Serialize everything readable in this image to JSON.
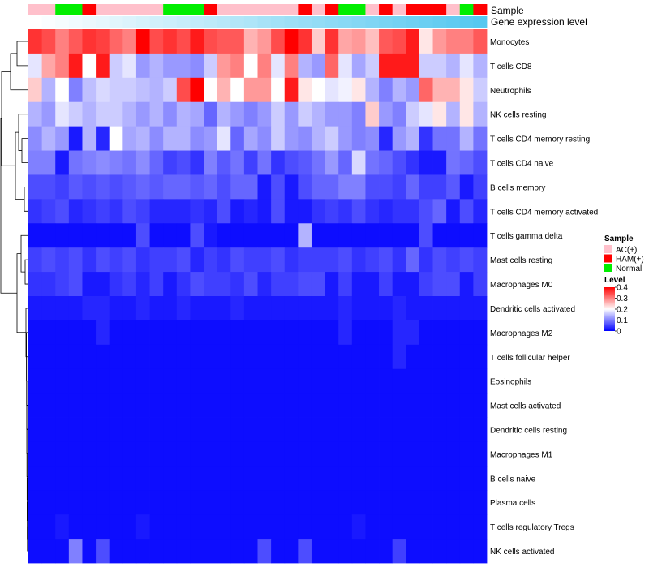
{
  "chart_data": {
    "type": "heatmap",
    "title": "",
    "annotation_tracks": [
      {
        "name": "Sample",
        "values": [
          "AC(+)",
          "AC(+)",
          "Normal",
          "Normal",
          "HAM(+)",
          "AC(+)",
          "AC(+)",
          "AC(+)",
          "AC(+)",
          "AC(+)",
          "Normal",
          "Normal",
          "Normal",
          "HAM(+)",
          "AC(+)",
          "AC(+)",
          "AC(+)",
          "AC(+)",
          "AC(+)",
          "AC(+)",
          "HAM(+)",
          "AC(+)",
          "HAM(+)",
          "Normal",
          "Normal",
          "AC(+)",
          "HAM(+)",
          "AC(+)",
          "HAM(+)",
          "HAM(+)",
          "HAM(+)",
          "AC(+)",
          "Normal",
          "HAM(+)"
        ]
      },
      {
        "name": "Gene expression level",
        "values": [
          0.0,
          0.03,
          0.06,
          0.09,
          0.12,
          0.15,
          0.18,
          0.21,
          0.24,
          0.27,
          0.3,
          0.33,
          0.36,
          0.39,
          0.42,
          0.45,
          0.48,
          0.52,
          0.55,
          0.58,
          0.61,
          0.64,
          0.67,
          0.7,
          0.73,
          0.76,
          0.79,
          0.82,
          0.85,
          0.88,
          0.91,
          0.94,
          0.97,
          1.0
        ]
      }
    ],
    "rows": [
      "Monocytes",
      "T cells CD8",
      "Neutrophils",
      "NK cells resting",
      "T cells CD4 memory resting",
      "T cells CD4 naive",
      "B cells memory",
      "T cells CD4 memory activated",
      "T cells gamma delta",
      "Mast cells resting",
      "Macrophages M0",
      "Dendritic cells activated",
      "Macrophages M2",
      "T cells follicular helper",
      "Eosinophils",
      "Mast cells activated",
      "Dendritic cells resting",
      "Macrophages M1",
      "B cells naive",
      "Plasma cells",
      "T cells regulatory  Tregs",
      "NK cells activated"
    ],
    "n_columns": 34,
    "values": [
      [
        0.36,
        0.34,
        0.3,
        0.33,
        0.36,
        0.35,
        0.32,
        0.3,
        0.4,
        0.34,
        0.36,
        0.34,
        0.38,
        0.34,
        0.33,
        0.33,
        0.26,
        0.28,
        0.34,
        0.4,
        0.36,
        0.24,
        0.36,
        0.27,
        0.28,
        0.25,
        0.33,
        0.34,
        0.38,
        0.22,
        0.28,
        0.3,
        0.3,
        0.33
      ],
      [
        0.18,
        0.27,
        0.3,
        0.38,
        0.2,
        0.38,
        0.16,
        0.18,
        0.12,
        0.14,
        0.12,
        0.12,
        0.11,
        0.16,
        0.28,
        0.3,
        0.2,
        0.3,
        0.18,
        0.3,
        0.14,
        0.12,
        0.32,
        0.18,
        0.13,
        0.16,
        0.38,
        0.38,
        0.38,
        0.16,
        0.16,
        0.14,
        0.18,
        0.14
      ],
      [
        0.24,
        0.14,
        0.2,
        0.1,
        0.15,
        0.17,
        0.16,
        0.16,
        0.15,
        0.14,
        0.16,
        0.34,
        0.4,
        0.2,
        0.26,
        0.2,
        0.28,
        0.28,
        0.2,
        0.38,
        0.22,
        0.2,
        0.18,
        0.19,
        0.22,
        0.14,
        0.1,
        0.14,
        0.12,
        0.32,
        0.26,
        0.26,
        0.22,
        0.16
      ],
      [
        0.14,
        0.12,
        0.18,
        0.16,
        0.14,
        0.16,
        0.16,
        0.14,
        0.12,
        0.14,
        0.11,
        0.14,
        0.13,
        0.08,
        0.14,
        0.12,
        0.1,
        0.12,
        0.16,
        0.12,
        0.16,
        0.14,
        0.12,
        0.12,
        0.1,
        0.24,
        0.12,
        0.1,
        0.16,
        0.18,
        0.22,
        0.14,
        0.22,
        0.14
      ],
      [
        0.11,
        0.14,
        0.12,
        0.02,
        0.14,
        0.03,
        0.2,
        0.13,
        0.14,
        0.11,
        0.14,
        0.14,
        0.11,
        0.12,
        0.18,
        0.08,
        0.13,
        0.11,
        0.16,
        0.12,
        0.11,
        0.14,
        0.16,
        0.12,
        0.1,
        0.11,
        0.03,
        0.12,
        0.14,
        0.04,
        0.09,
        0.09,
        0.14,
        0.09
      ],
      [
        0.1,
        0.1,
        0.02,
        0.09,
        0.1,
        0.11,
        0.1,
        0.09,
        0.11,
        0.08,
        0.05,
        0.06,
        0.04,
        0.1,
        0.07,
        0.09,
        0.05,
        0.09,
        0.04,
        0.06,
        0.07,
        0.09,
        0.12,
        0.08,
        0.17,
        0.09,
        0.08,
        0.06,
        0.04,
        0.02,
        0.02,
        0.09,
        0.08,
        0.06
      ],
      [
        0.06,
        0.06,
        0.05,
        0.07,
        0.06,
        0.07,
        0.06,
        0.07,
        0.08,
        0.07,
        0.08,
        0.08,
        0.07,
        0.08,
        0.06,
        0.08,
        0.08,
        0.02,
        0.06,
        0.02,
        0.06,
        0.08,
        0.08,
        0.1,
        0.1,
        0.06,
        0.06,
        0.05,
        0.08,
        0.05,
        0.05,
        0.07,
        0.02,
        0.05
      ],
      [
        0.04,
        0.05,
        0.06,
        0.03,
        0.04,
        0.05,
        0.04,
        0.06,
        0.05,
        0.03,
        0.03,
        0.03,
        0.04,
        0.03,
        0.06,
        0.02,
        0.03,
        0.02,
        0.06,
        0.02,
        0.02,
        0.04,
        0.05,
        0.04,
        0.06,
        0.04,
        0.03,
        0.04,
        0.04,
        0.06,
        0.08,
        0.02,
        0.06,
        0.03
      ],
      [
        0.01,
        0.01,
        0.01,
        0.01,
        0.01,
        0.01,
        0.01,
        0.01,
        0.06,
        0.01,
        0.01,
        0.01,
        0.06,
        0.02,
        0.01,
        0.01,
        0.01,
        0.01,
        0.01,
        0.01,
        0.14,
        0.01,
        0.01,
        0.01,
        0.01,
        0.01,
        0.01,
        0.01,
        0.01,
        0.06,
        0.01,
        0.01,
        0.01,
        0.01
      ],
      [
        0.05,
        0.06,
        0.05,
        0.06,
        0.04,
        0.06,
        0.05,
        0.06,
        0.04,
        0.05,
        0.05,
        0.06,
        0.03,
        0.05,
        0.04,
        0.06,
        0.05,
        0.05,
        0.06,
        0.04,
        0.05,
        0.05,
        0.05,
        0.06,
        0.04,
        0.05,
        0.06,
        0.04,
        0.08,
        0.04,
        0.06,
        0.05,
        0.06,
        0.05
      ],
      [
        0.04,
        0.04,
        0.05,
        0.06,
        0.02,
        0.02,
        0.04,
        0.05,
        0.03,
        0.05,
        0.02,
        0.04,
        0.06,
        0.05,
        0.05,
        0.04,
        0.06,
        0.03,
        0.05,
        0.05,
        0.06,
        0.06,
        0.02,
        0.05,
        0.02,
        0.02,
        0.05,
        0.02,
        0.02,
        0.05,
        0.06,
        0.06,
        0.02,
        0.05
      ],
      [
        0.02,
        0.02,
        0.02,
        0.02,
        0.03,
        0.03,
        0.02,
        0.02,
        0.03,
        0.02,
        0.02,
        0.03,
        0.02,
        0.02,
        0.02,
        0.03,
        0.02,
        0.02,
        0.02,
        0.02,
        0.02,
        0.02,
        0.02,
        0.03,
        0.02,
        0.02,
        0.02,
        0.03,
        0.02,
        0.02,
        0.02,
        0.02,
        0.02,
        0.02
      ],
      [
        0.01,
        0.01,
        0.01,
        0.01,
        0.01,
        0.03,
        0.01,
        0.01,
        0.01,
        0.01,
        0.01,
        0.01,
        0.01,
        0.01,
        0.01,
        0.01,
        0.01,
        0.01,
        0.01,
        0.01,
        0.01,
        0.01,
        0.01,
        0.03,
        0.01,
        0.01,
        0.01,
        0.03,
        0.03,
        0.01,
        0.01,
        0.01,
        0.01,
        0.01
      ],
      [
        0.01,
        0.01,
        0.01,
        0.01,
        0.01,
        0.01,
        0.01,
        0.01,
        0.01,
        0.01,
        0.01,
        0.01,
        0.01,
        0.01,
        0.01,
        0.01,
        0.01,
        0.01,
        0.01,
        0.01,
        0.01,
        0.01,
        0.01,
        0.01,
        0.01,
        0.01,
        0.01,
        0.03,
        0.01,
        0.01,
        0.01,
        0.01,
        0.01,
        0.01
      ],
      [
        0.01,
        0.01,
        0.01,
        0.01,
        0.01,
        0.01,
        0.01,
        0.01,
        0.01,
        0.01,
        0.01,
        0.01,
        0.01,
        0.01,
        0.01,
        0.01,
        0.01,
        0.01,
        0.01,
        0.01,
        0.01,
        0.01,
        0.01,
        0.01,
        0.01,
        0.01,
        0.01,
        0.01,
        0.01,
        0.01,
        0.01,
        0.01,
        0.01,
        0.01
      ],
      [
        0.01,
        0.01,
        0.01,
        0.01,
        0.01,
        0.01,
        0.01,
        0.01,
        0.01,
        0.01,
        0.01,
        0.01,
        0.01,
        0.01,
        0.01,
        0.01,
        0.01,
        0.01,
        0.01,
        0.01,
        0.01,
        0.01,
        0.01,
        0.01,
        0.01,
        0.01,
        0.01,
        0.01,
        0.01,
        0.01,
        0.01,
        0.01,
        0.01,
        0.01
      ],
      [
        0.01,
        0.01,
        0.01,
        0.01,
        0.01,
        0.01,
        0.01,
        0.01,
        0.01,
        0.01,
        0.01,
        0.01,
        0.01,
        0.01,
        0.01,
        0.01,
        0.01,
        0.01,
        0.01,
        0.01,
        0.01,
        0.01,
        0.01,
        0.01,
        0.01,
        0.01,
        0.01,
        0.01,
        0.01,
        0.01,
        0.01,
        0.01,
        0.01,
        0.01
      ],
      [
        0.01,
        0.01,
        0.01,
        0.01,
        0.01,
        0.01,
        0.01,
        0.01,
        0.01,
        0.01,
        0.01,
        0.01,
        0.01,
        0.01,
        0.01,
        0.01,
        0.01,
        0.01,
        0.01,
        0.01,
        0.01,
        0.01,
        0.01,
        0.01,
        0.01,
        0.01,
        0.01,
        0.01,
        0.01,
        0.01,
        0.01,
        0.01,
        0.01,
        0.01
      ],
      [
        0.01,
        0.01,
        0.01,
        0.01,
        0.01,
        0.01,
        0.01,
        0.01,
        0.01,
        0.01,
        0.01,
        0.01,
        0.01,
        0.01,
        0.01,
        0.01,
        0.01,
        0.01,
        0.01,
        0.01,
        0.01,
        0.01,
        0.01,
        0.01,
        0.01,
        0.01,
        0.01,
        0.01,
        0.01,
        0.01,
        0.01,
        0.01,
        0.01,
        0.01
      ],
      [
        0.01,
        0.01,
        0.01,
        0.01,
        0.01,
        0.01,
        0.01,
        0.01,
        0.01,
        0.01,
        0.01,
        0.01,
        0.01,
        0.01,
        0.01,
        0.01,
        0.01,
        0.01,
        0.01,
        0.01,
        0.01,
        0.01,
        0.01,
        0.01,
        0.01,
        0.01,
        0.01,
        0.01,
        0.01,
        0.01,
        0.01,
        0.01,
        0.01,
        0.01
      ],
      [
        0.01,
        0.01,
        0.02,
        0.01,
        0.01,
        0.01,
        0.01,
        0.01,
        0.02,
        0.01,
        0.01,
        0.01,
        0.01,
        0.01,
        0.01,
        0.01,
        0.01,
        0.01,
        0.01,
        0.01,
        0.01,
        0.01,
        0.01,
        0.01,
        0.02,
        0.01,
        0.01,
        0.01,
        0.01,
        0.01,
        0.01,
        0.01,
        0.01,
        0.01
      ],
      [
        0.01,
        0.01,
        0.01,
        0.1,
        0.01,
        0.06,
        0.01,
        0.01,
        0.01,
        0.01,
        0.01,
        0.01,
        0.01,
        0.01,
        0.01,
        0.01,
        0.01,
        0.06,
        0.01,
        0.01,
        0.06,
        0.01,
        0.01,
        0.01,
        0.01,
        0.01,
        0.01,
        0.05,
        0.01,
        0.01,
        0.01,
        0.01,
        0.01,
        0.01
      ]
    ],
    "legends": [
      {
        "title": "Sample",
        "items": [
          {
            "label": "AC(+)",
            "color": "#FFC0CB"
          },
          {
            "label": "HAM(+)",
            "color": "#FF0000"
          },
          {
            "label": "Normal",
            "color": "#00EE00"
          }
        ]
      },
      {
        "title": "Level",
        "ticks": [
          "0.4",
          "0.3",
          "0.2",
          "0.1",
          "0"
        ],
        "range": [
          0,
          0.4
        ],
        "colors": {
          "low": "#0000FF",
          "mid": "#FFFFFF",
          "high": "#FF0000"
        },
        "midpoint": 0.2
      }
    ],
    "track_colors": {
      "gene_low": "#FFFFFF",
      "gene_high": "#56C8F0"
    }
  }
}
